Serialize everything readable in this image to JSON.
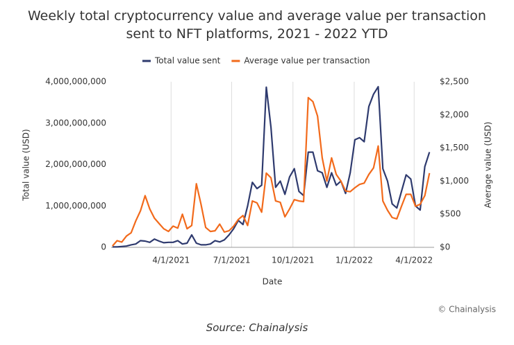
{
  "chart_data": {
    "type": "line",
    "title": "Weekly total cryptocurrency value and average value per transaction sent to NFT platforms, 2021 - 2022 YTD",
    "x_label": "Date",
    "y_label": "Total value (USD)",
    "y2_label": "Average value (USD)",
    "annotation": "© Chainalysis",
    "source": "Source: Chainalysis",
    "x": [
      "1/3/2021",
      "1/10/2021",
      "1/17/2021",
      "1/24/2021",
      "1/31/2021",
      "2/7/2021",
      "2/14/2021",
      "2/21/2021",
      "2/28/2021",
      "3/7/2021",
      "3/14/2021",
      "3/21/2021",
      "3/28/2021",
      "4/4/2021",
      "4/11/2021",
      "4/18/2021",
      "4/25/2021",
      "5/2/2021",
      "5/9/2021",
      "5/16/2021",
      "5/23/2021",
      "5/30/2021",
      "6/6/2021",
      "6/13/2021",
      "6/20/2021",
      "6/27/2021",
      "7/4/2021",
      "7/11/2021",
      "7/18/2021",
      "7/25/2021",
      "8/1/2021",
      "8/8/2021",
      "8/15/2021",
      "8/22/2021",
      "8/29/2021",
      "9/5/2021",
      "9/12/2021",
      "9/19/2021",
      "9/26/2021",
      "10/3/2021",
      "10/10/2021",
      "10/17/2021",
      "10/24/2021",
      "10/31/2021",
      "11/7/2021",
      "11/14/2021",
      "11/21/2021",
      "11/28/2021",
      "12/5/2021",
      "12/12/2021",
      "12/19/2021",
      "12/26/2021",
      "1/2/2022",
      "1/9/2022",
      "1/16/2022",
      "1/23/2022",
      "1/30/2022",
      "2/6/2022",
      "2/13/2022",
      "2/20/2022",
      "2/27/2022",
      "3/6/2022",
      "3/13/2022",
      "3/20/2022",
      "3/27/2022",
      "4/3/2022",
      "4/10/2022",
      "4/17/2022",
      "4/24/2022"
    ],
    "series": [
      {
        "name": "Total value sent",
        "color": "#2e3a6e",
        "axis": "y",
        "values": [
          10000000,
          10000000,
          20000000,
          30000000,
          60000000,
          80000000,
          160000000,
          150000000,
          120000000,
          200000000,
          150000000,
          110000000,
          120000000,
          120000000,
          160000000,
          80000000,
          100000000,
          300000000,
          100000000,
          60000000,
          60000000,
          80000000,
          160000000,
          130000000,
          180000000,
          300000000,
          450000000,
          650000000,
          550000000,
          1000000000,
          1570000000,
          1420000000,
          1500000000,
          3870000000,
          2900000000,
          1450000000,
          1600000000,
          1280000000,
          1700000000,
          1900000000,
          1350000000,
          1250000000,
          2300000000,
          2300000000,
          1850000000,
          1800000000,
          1450000000,
          1800000000,
          1500000000,
          1600000000,
          1300000000,
          1800000000,
          2600000000,
          2650000000,
          2550000000,
          3400000000,
          3700000000,
          3880000000,
          1900000000,
          1600000000,
          1050000000,
          950000000,
          1350000000,
          1750000000,
          1650000000,
          1000000000,
          900000000,
          1950000000,
          2300000000
        ]
      },
      {
        "name": "Average value per transaction",
        "color": "#f26a1b",
        "axis": "y2",
        "values": [
          20,
          100,
          80,
          170,
          220,
          400,
          550,
          780,
          580,
          440,
          360,
          280,
          240,
          320,
          290,
          500,
          280,
          330,
          960,
          650,
          300,
          240,
          250,
          350,
          230,
          250,
          320,
          420,
          480,
          330,
          700,
          670,
          530,
          1120,
          1050,
          700,
          680,
          460,
          580,
          720,
          700,
          690,
          2260,
          2200,
          1980,
          1350,
          1000,
          1350,
          1100,
          1000,
          850,
          840,
          900,
          950,
          970,
          1100,
          1200,
          1530,
          700,
          560,
          450,
          430,
          620,
          800,
          800,
          620,
          650,
          780,
          1120
        ]
      }
    ],
    "xlim": [
      "1/1/2021",
      "5/1/2022"
    ],
    "xticks": [
      "4/1/2021",
      "7/1/2021",
      "10/1/2021",
      "1/1/2022",
      "4/1/2022"
    ],
    "ylim": [
      0,
      4000000000
    ],
    "yticks": [
      0,
      {
        "value": 1000000000,
        "label": "1,000,000,000"
      },
      {
        "value": 2000000000,
        "label": "2,000,000,000"
      },
      {
        "value": 3000000000,
        "label": "3,000,000,000"
      },
      {
        "value": 4000000000,
        "label": "4,000,000,000"
      }
    ],
    "y2lim": [
      0,
      2500
    ],
    "y2ticks": [
      {
        "value": 0,
        "label": "$0"
      },
      {
        "value": 500,
        "label": "$500"
      },
      {
        "value": 1000,
        "label": "$1,000"
      },
      {
        "value": 1500,
        "label": "$1,500"
      },
      {
        "value": 2000,
        "label": "$2,000"
      },
      {
        "value": 2500,
        "label": "$2,500"
      }
    ],
    "grid": "x",
    "legend": "top"
  }
}
